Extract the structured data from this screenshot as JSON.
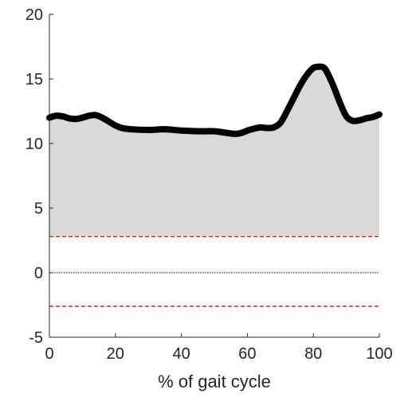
{
  "chart_data": {
    "type": "area",
    "title": "",
    "xlabel": "% of gait cycle",
    "ylabel": "",
    "xlim": [
      0,
      100
    ],
    "ylim": [
      -5,
      20
    ],
    "xticks": [
      0,
      20,
      40,
      60,
      80,
      100
    ],
    "yticks": [
      -5,
      0,
      5,
      10,
      15,
      20
    ],
    "grid": false,
    "series": [
      {
        "kind": "filled-line",
        "fill_baseline": 2.8,
        "color": "#000000",
        "fill_color": "#d9d9d9",
        "x": [
          0,
          2,
          4,
          6,
          8,
          10,
          12,
          14,
          16,
          18,
          20,
          22,
          25,
          30,
          35,
          40,
          45,
          50,
          53,
          56,
          58,
          60,
          62,
          64,
          66,
          68,
          70,
          72,
          74,
          76,
          78,
          80,
          82,
          83,
          84,
          86,
          88,
          90,
          92,
          94,
          96,
          98,
          100
        ],
        "y": [
          12.0,
          12.15,
          12.1,
          11.95,
          11.9,
          12.0,
          12.15,
          12.2,
          12.0,
          11.7,
          11.4,
          11.2,
          11.1,
          11.05,
          11.1,
          11.0,
          10.95,
          10.95,
          10.85,
          10.75,
          10.8,
          11.0,
          11.15,
          11.25,
          11.2,
          11.25,
          11.6,
          12.5,
          13.5,
          14.5,
          15.3,
          15.85,
          15.95,
          15.9,
          15.6,
          14.5,
          13.2,
          12.1,
          11.75,
          11.8,
          11.95,
          12.05,
          12.25
        ]
      }
    ],
    "reference_lines": [
      {
        "y": 2.8,
        "style": "dashed",
        "color": "#e02020"
      },
      {
        "y": 0,
        "style": "dotted",
        "color": "#000000"
      },
      {
        "y": -2.6,
        "style": "dashed",
        "color": "#e02020"
      }
    ]
  }
}
